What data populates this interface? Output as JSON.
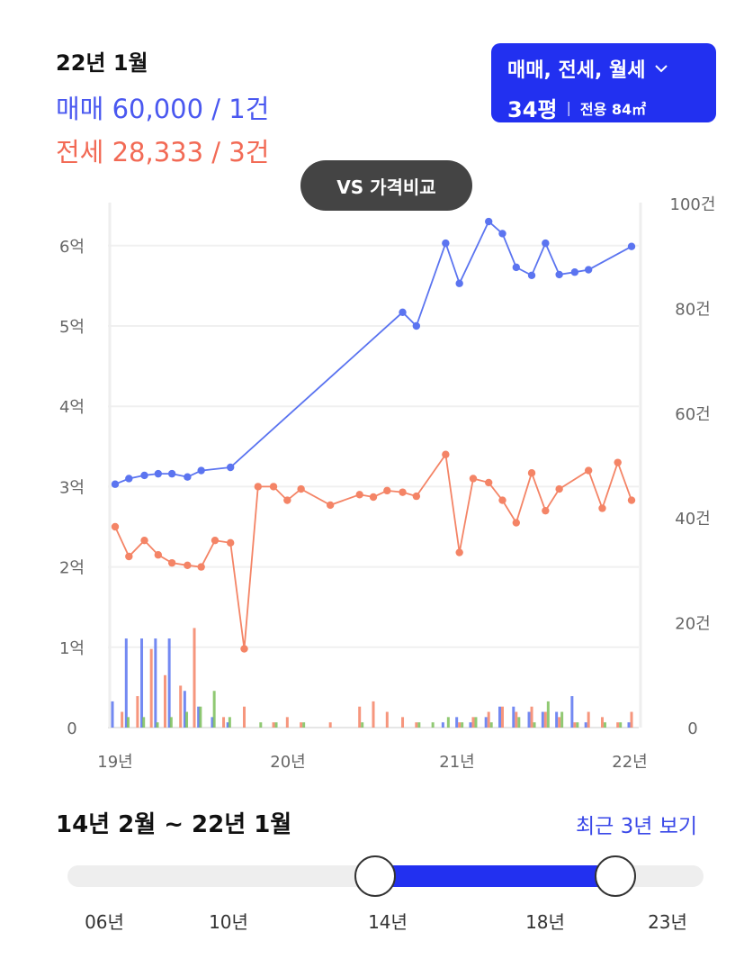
{
  "header": {
    "period": "22년 1월",
    "sale_summary": "매매 60,000 / 1건",
    "rent_summary": "전세 28,333 / 3건"
  },
  "filter": {
    "types": "매매, 전세, 월세",
    "pyeong": "34평",
    "separator": "|",
    "area": "전용 84㎡"
  },
  "vs_button": "VS 가격비교",
  "colors": {
    "sale": "#5b74f0",
    "rent": "#f48466",
    "monthly": "#7cbf5a",
    "accent": "#2230f0"
  },
  "icons": {
    "dropdown": "chevron-down-icon"
  },
  "chart_data": {
    "type": "line",
    "x_ticks": [
      "19년",
      "20년",
      "21년",
      "22년"
    ],
    "x_range": [
      2019.0,
      2022.0
    ],
    "y_left": {
      "ticks": [
        "0",
        "1억",
        "2억",
        "3억",
        "4억",
        "5억",
        "6억"
      ],
      "range": [
        0,
        6.5
      ],
      "unit": "억"
    },
    "y_right": {
      "ticks": [
        "0",
        "20건",
        "40건",
        "60건",
        "80건",
        "100건"
      ],
      "range": [
        0,
        100
      ],
      "unit": "건"
    },
    "grid": true,
    "series": [
      {
        "name": "매매",
        "axis": "left",
        "points": [
          [
            2019.0,
            3.03
          ],
          [
            2019.08,
            3.1
          ],
          [
            2019.17,
            3.14
          ],
          [
            2019.25,
            3.16
          ],
          [
            2019.33,
            3.16
          ],
          [
            2019.42,
            3.12
          ],
          [
            2019.5,
            3.2
          ],
          [
            2019.67,
            3.24
          ],
          [
            2020.67,
            5.17
          ],
          [
            2020.75,
            5.0
          ],
          [
            2020.92,
            6.03
          ],
          [
            2021.0,
            5.53
          ],
          [
            2021.17,
            6.3
          ],
          [
            2021.25,
            6.15
          ],
          [
            2021.33,
            5.73
          ],
          [
            2021.42,
            5.63
          ],
          [
            2021.5,
            6.03
          ],
          [
            2021.58,
            5.64
          ],
          [
            2021.67,
            5.67
          ],
          [
            2021.75,
            5.7
          ],
          [
            2022.0,
            5.99
          ]
        ]
      },
      {
        "name": "전세",
        "axis": "left",
        "points": [
          [
            2019.0,
            2.5
          ],
          [
            2019.08,
            2.13
          ],
          [
            2019.17,
            2.33
          ],
          [
            2019.25,
            2.15
          ],
          [
            2019.33,
            2.05
          ],
          [
            2019.42,
            2.02
          ],
          [
            2019.5,
            2.0
          ],
          [
            2019.58,
            2.33
          ],
          [
            2019.67,
            2.3
          ],
          [
            2019.75,
            0.98
          ],
          [
            2019.83,
            3.0
          ],
          [
            2019.92,
            3.0
          ],
          [
            2020.0,
            2.83
          ],
          [
            2020.08,
            2.97
          ],
          [
            2020.25,
            2.77
          ],
          [
            2020.42,
            2.9
          ],
          [
            2020.5,
            2.87
          ],
          [
            2020.58,
            2.95
          ],
          [
            2020.67,
            2.93
          ],
          [
            2020.75,
            2.88
          ],
          [
            2020.92,
            3.4
          ],
          [
            2021.0,
            2.18
          ],
          [
            2021.08,
            3.1
          ],
          [
            2021.17,
            3.05
          ],
          [
            2021.25,
            2.83
          ],
          [
            2021.33,
            2.55
          ],
          [
            2021.42,
            3.17
          ],
          [
            2021.5,
            2.7
          ],
          [
            2021.58,
            2.97
          ],
          [
            2021.75,
            3.2
          ],
          [
            2021.83,
            2.73
          ],
          [
            2021.92,
            3.3
          ],
          [
            2022.0,
            2.83
          ]
        ]
      }
    ],
    "volume": [
      {
        "name": "매매",
        "points": [
          [
            2019.0,
            5
          ],
          [
            2019.08,
            17
          ],
          [
            2019.17,
            17
          ],
          [
            2019.25,
            17
          ],
          [
            2019.33,
            17
          ],
          [
            2019.42,
            7
          ],
          [
            2019.5,
            4
          ],
          [
            2019.58,
            2
          ],
          [
            2019.67,
            1
          ],
          [
            2020.92,
            1
          ],
          [
            2021.0,
            2
          ],
          [
            2021.08,
            1
          ],
          [
            2021.17,
            2
          ],
          [
            2021.25,
            4
          ],
          [
            2021.33,
            4
          ],
          [
            2021.42,
            3
          ],
          [
            2021.5,
            3
          ],
          [
            2021.58,
            3
          ],
          [
            2021.67,
            6
          ],
          [
            2021.75,
            1
          ],
          [
            2022.0,
            1
          ]
        ]
      },
      {
        "name": "전세",
        "points": [
          [
            2019.04,
            3
          ],
          [
            2019.13,
            6
          ],
          [
            2019.21,
            15
          ],
          [
            2019.29,
            10
          ],
          [
            2019.38,
            8
          ],
          [
            2019.46,
            19
          ],
          [
            2019.63,
            2
          ],
          [
            2019.75,
            4
          ],
          [
            2019.92,
            1
          ],
          [
            2020.0,
            2
          ],
          [
            2020.08,
            1
          ],
          [
            2020.25,
            1
          ],
          [
            2020.42,
            4
          ],
          [
            2020.5,
            5
          ],
          [
            2020.58,
            3
          ],
          [
            2020.67,
            2
          ],
          [
            2020.75,
            1
          ],
          [
            2021.0,
            1
          ],
          [
            2021.08,
            2
          ],
          [
            2021.17,
            3
          ],
          [
            2021.25,
            4
          ],
          [
            2021.33,
            3
          ],
          [
            2021.42,
            4
          ],
          [
            2021.5,
            3
          ],
          [
            2021.58,
            2
          ],
          [
            2021.67,
            1
          ],
          [
            2021.75,
            3
          ],
          [
            2021.83,
            2
          ],
          [
            2021.92,
            1
          ],
          [
            2022.0,
            3
          ]
        ]
      },
      {
        "name": "월세",
        "points": [
          [
            2019.06,
            2
          ],
          [
            2019.15,
            2
          ],
          [
            2019.23,
            1
          ],
          [
            2019.31,
            2
          ],
          [
            2019.4,
            3
          ],
          [
            2019.48,
            4
          ],
          [
            2019.56,
            7
          ],
          [
            2019.65,
            2
          ],
          [
            2019.83,
            1
          ],
          [
            2019.92,
            1
          ],
          [
            2020.08,
            1
          ],
          [
            2020.42,
            1
          ],
          [
            2020.75,
            1
          ],
          [
            2020.83,
            1
          ],
          [
            2020.92,
            2
          ],
          [
            2021.0,
            1
          ],
          [
            2021.08,
            2
          ],
          [
            2021.17,
            1
          ],
          [
            2021.33,
            2
          ],
          [
            2021.42,
            1
          ],
          [
            2021.5,
            5
          ],
          [
            2021.58,
            3
          ],
          [
            2021.67,
            1
          ],
          [
            2021.83,
            1
          ],
          [
            2021.92,
            1
          ]
        ]
      }
    ]
  },
  "range": {
    "label": "14년 2월 ~ 22년 1월",
    "recent_link": "최근 3년 보기",
    "slider_ticks": [
      "06년",
      "10년",
      "14년",
      "18년",
      "23년"
    ],
    "slider_min": 2006,
    "slider_max": 2023,
    "selected_start": 2014,
    "selected_end": 2022
  }
}
